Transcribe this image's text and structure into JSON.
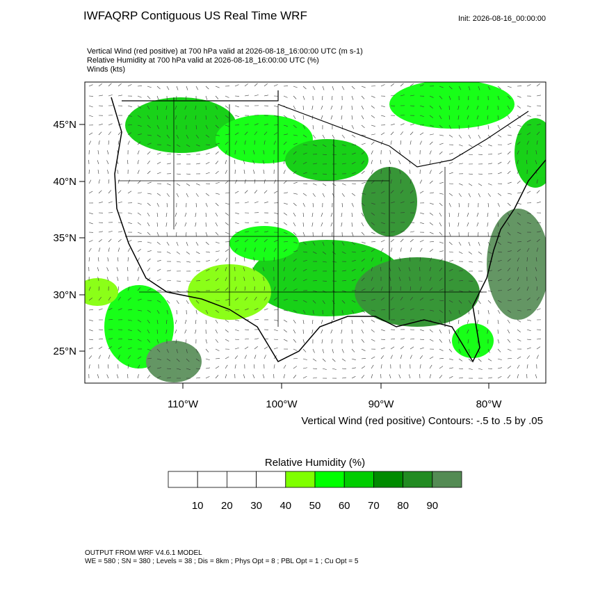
{
  "header": {
    "title": "IWFAQRP Contiguous US Real Time WRF",
    "init": "Init: 2026-08-16_00:00:00"
  },
  "fields": [
    "Vertical Wind (red positive) at 700 hPa valid at 2026-08-18_16:00:00 UTC   (m s-1)",
    "Relative Humidity at 700 hPa valid at 2026-08-18_16:00:00 UTC   (%)",
    "Winds   (kts)"
  ],
  "map": {
    "lat_labels": [
      "45°N",
      "40°N",
      "35°N",
      "30°N",
      "25°N"
    ],
    "lon_labels": [
      "110°W",
      "100°W",
      "90°W",
      "80°W"
    ],
    "contour_note": "Vertical Wind (red positive) Contours: -.5 to .5 by .05"
  },
  "colorbar": {
    "title": "Relative Humidity  (%)",
    "labels": [
      "10",
      "20",
      "30",
      "40",
      "50",
      "60",
      "70",
      "80",
      "90"
    ],
    "colors": [
      "#ffffff",
      "#ffffff",
      "#ffffff",
      "#ffffff",
      "#7fff00",
      "#00ff00",
      "#00cd00",
      "#008b00",
      "#228b22",
      "#548b54"
    ]
  },
  "footer": [
    "OUTPUT FROM WRF V4.6.1 MODEL",
    "WE = 580 ; SN = 380 ; Levels = 38 ; Dis = 8km ; Phys Opt = 8 ; PBL Opt = 1 ; Cu Opt = 5"
  ]
}
